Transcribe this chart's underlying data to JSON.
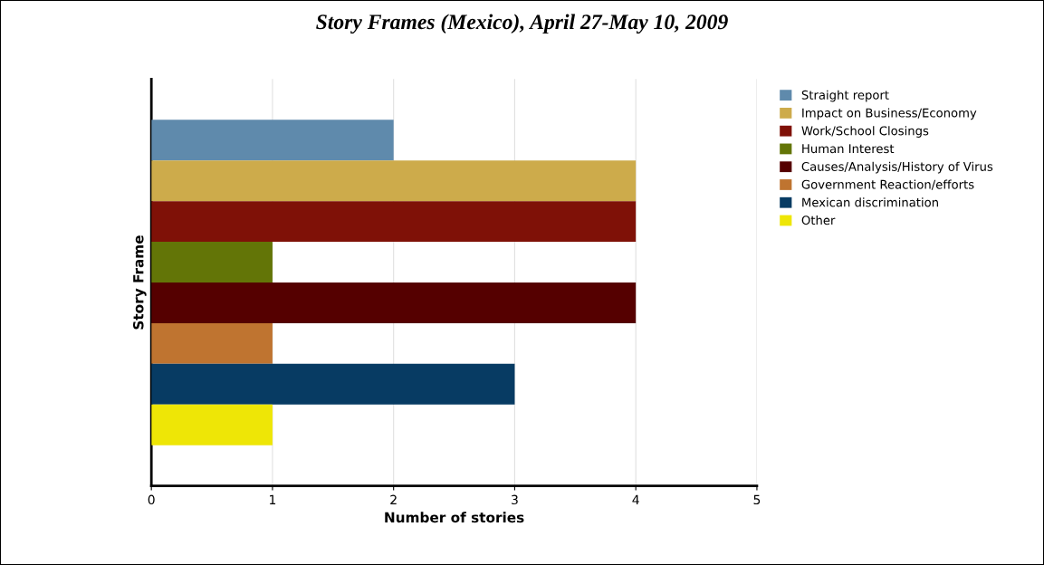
{
  "chart_data": {
    "type": "bar",
    "orientation": "horizontal",
    "title": "Story Frames (Mexico), April 27-May 10, 2009",
    "xlabel": "Number of stories",
    "ylabel": "Story Frame",
    "categories": [
      null
    ],
    "series": [
      {
        "name": "Straight report",
        "color": "#5f8aac",
        "values": [
          2
        ]
      },
      {
        "name": "Impact on Business/Economy",
        "color": "#cdab4b",
        "values": [
          4
        ]
      },
      {
        "name": "Work/School Closings",
        "color": "#7f1107",
        "values": [
          4
        ]
      },
      {
        "name": "Human Interest",
        "color": "#637507",
        "values": [
          1
        ]
      },
      {
        "name": "Causes/Analysis/History of Virus",
        "color": "#550000",
        "values": [
          4
        ]
      },
      {
        "name": "Government Reaction/efforts",
        "color": "#bf7430",
        "values": [
          1
        ]
      },
      {
        "name": "Mexican discrimination",
        "color": "#073b63",
        "values": [
          3
        ]
      },
      {
        "name": "Other",
        "color": "#eee606",
        "values": [
          1
        ]
      }
    ],
    "xlim": [
      0,
      5
    ],
    "xticks": [
      0,
      1,
      2,
      3,
      4,
      5
    ],
    "grid": "x",
    "legend": "top right",
    "tick_labels": "x"
  }
}
